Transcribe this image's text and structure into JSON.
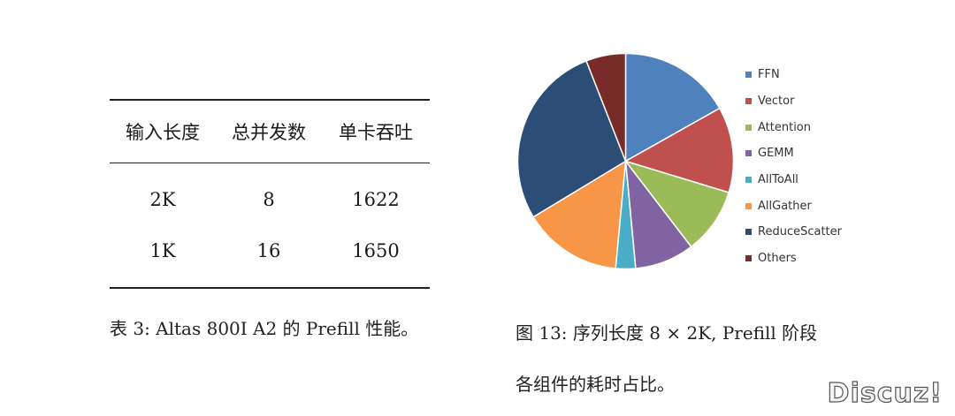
{
  "table": {
    "headers": [
      "输入长度",
      "总并发数",
      "单卡吞吐"
    ],
    "rows": [
      [
        "2K",
        "8",
        "1622"
      ],
      [
        "1K",
        "16",
        "1650"
      ]
    ],
    "caption": "表 3: Altas 800I A2 的 Prefill 性能。"
  },
  "figure": {
    "caption_line1": "图 13: 序列长度 8 × 2K, Prefill 阶段",
    "caption_line2": "各组件的耗时占比。"
  },
  "chart_data": {
    "type": "pie",
    "categories": [
      "FFN",
      "Vector",
      "Attention",
      "GEMM",
      "AllToAll",
      "AllGather",
      "ReduceScatter",
      "Others"
    ],
    "values": [
      17,
      13,
      10,
      9,
      3,
      15,
      28,
      6
    ],
    "colors": [
      "#4f81bd",
      "#c0504d",
      "#9bbb59",
      "#8064a2",
      "#4bacc6",
      "#f79646",
      "#2c4d75",
      "#772c2a"
    ],
    "legend_position": "right",
    "start_angle": "12 o'clock",
    "direction": "clockwise"
  },
  "watermark": "Discuz!"
}
